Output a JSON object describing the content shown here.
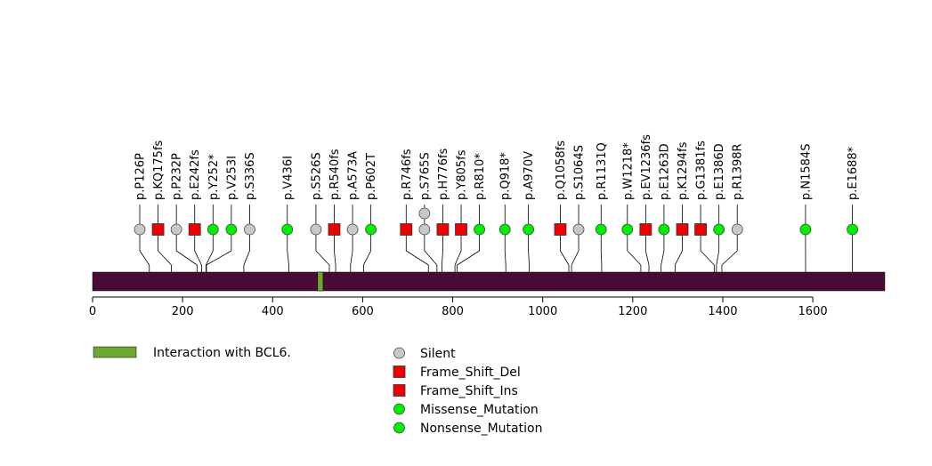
{
  "chart_data": {
    "type": "lollipop",
    "protein_length": 1760,
    "x_axis": {
      "min": 0,
      "max": 1760,
      "ticks": [
        0,
        200,
        400,
        600,
        800,
        1000,
        1200,
        1400,
        1600
      ]
    },
    "domains": [
      {
        "name": "Interaction with BCL6.",
        "start": 500,
        "end": 512,
        "color": "#6aa832"
      }
    ],
    "mutations": [
      {
        "label": "p.P126P",
        "position": 126,
        "type": "Silent"
      },
      {
        "label": "p.KQ175fs",
        "position": 175,
        "type": "Frame_Shift_Del"
      },
      {
        "label": "p.P232P",
        "position": 232,
        "type": "Silent"
      },
      {
        "label": "p.E242fs",
        "position": 242,
        "type": "Frame_Shift_Del"
      },
      {
        "label": "p.Y252*",
        "position": 252,
        "type": "Nonsense_Mutation"
      },
      {
        "label": "p.V253I",
        "position": 253,
        "type": "Missense_Mutation"
      },
      {
        "label": "p.S336S",
        "position": 336,
        "type": "Silent"
      },
      {
        "label": "p.V436I",
        "position": 436,
        "type": "Missense_Mutation"
      },
      {
        "label": "p.S526S",
        "position": 526,
        "type": "Silent"
      },
      {
        "label": "p.R540fs",
        "position": 540,
        "type": "Frame_Shift_Del"
      },
      {
        "label": "p.A573A",
        "position": 573,
        "type": "Silent"
      },
      {
        "label": "p.P602T",
        "position": 602,
        "type": "Missense_Mutation"
      },
      {
        "label": "p.R746fs",
        "position": 746,
        "type": "Frame_Shift_Del"
      },
      {
        "label": "p.S765S",
        "position": 765,
        "type": "Silent",
        "count": 2
      },
      {
        "label": "p.H776fs",
        "position": 776,
        "type": "Frame_Shift_Ins"
      },
      {
        "label": "p.Y805fs",
        "position": 805,
        "type": "Frame_Shift_Ins"
      },
      {
        "label": "p.R810*",
        "position": 810,
        "type": "Nonsense_Mutation"
      },
      {
        "label": "p.Q918*",
        "position": 918,
        "type": "Nonsense_Mutation"
      },
      {
        "label": "p.A970V",
        "position": 970,
        "type": "Missense_Mutation"
      },
      {
        "label": "p.Q1058fs",
        "position": 1058,
        "type": "Frame_Shift_Del"
      },
      {
        "label": "p.S1064S",
        "position": 1064,
        "type": "Silent"
      },
      {
        "label": "p.R1131Q",
        "position": 1131,
        "type": "Missense_Mutation"
      },
      {
        "label": "p.W1218*",
        "position": 1218,
        "type": "Nonsense_Mutation"
      },
      {
        "label": "p.EV1236fs",
        "position": 1236,
        "type": "Frame_Shift_Del"
      },
      {
        "label": "p.E1263D",
        "position": 1263,
        "type": "Missense_Mutation"
      },
      {
        "label": "p.K1294fs",
        "position": 1294,
        "type": "Frame_Shift_Del"
      },
      {
        "label": "p.G1381fs",
        "position": 1381,
        "type": "Frame_Shift_Del"
      },
      {
        "label": "p.E1386D",
        "position": 1386,
        "type": "Missense_Mutation"
      },
      {
        "label": "p.R1398R",
        "position": 1398,
        "type": "Silent"
      },
      {
        "label": "p.N1584S",
        "position": 1584,
        "type": "Missense_Mutation"
      },
      {
        "label": "p.E1688*",
        "position": 1688,
        "type": "Nonsense_Mutation"
      }
    ],
    "legend": {
      "domains": [
        "Interaction with BCL6."
      ],
      "types": [
        {
          "name": "Silent",
          "shape": "circle",
          "color": "#c8c8c8"
        },
        {
          "name": "Frame_Shift_Del",
          "shape": "square",
          "color": "#ee0000"
        },
        {
          "name": "Frame_Shift_Ins",
          "shape": "square",
          "color": "#ee0000"
        },
        {
          "name": "Missense_Mutation",
          "shape": "circle",
          "color": "#00ee00"
        },
        {
          "name": "Nonsense_Mutation",
          "shape": "circle",
          "color": "#00ee00"
        }
      ]
    },
    "colors": {
      "backbone": "#4b0a35",
      "silent": "#c8c8c8",
      "frameshift": "#ee0000",
      "missense": "#00ee00"
    }
  }
}
